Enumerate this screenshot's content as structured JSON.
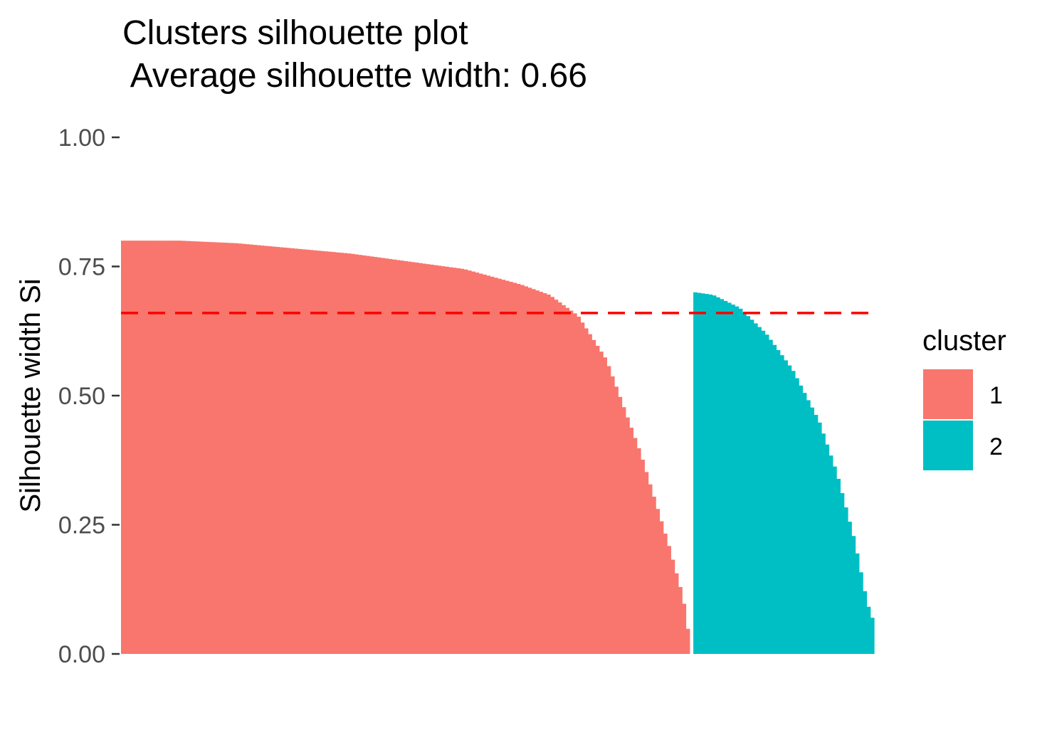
{
  "chart_data": {
    "type": "bar",
    "title": "Clusters silhouette plot",
    "subtitle": " Average silhouette width: 0.66",
    "xlabel": "",
    "ylabel": "Silhouette width Si",
    "ylim": [
      0,
      1
    ],
    "yticks": [
      "0.00",
      "0.25",
      "0.50",
      "0.75",
      "1.00"
    ],
    "average_silhouette_width": 0.66,
    "legend": {
      "title": "cluster",
      "placement": "right",
      "entries": [
        "1",
        "2"
      ]
    },
    "colors": {
      "cluster_1": "#F8766D",
      "cluster_2": "#00BFC4",
      "average_line": "#FF0000"
    },
    "grid": false,
    "series": [
      {
        "name": "1",
        "count": 152,
        "profile": [
          [
            0,
            0.8
          ],
          [
            0.1,
            0.8
          ],
          [
            0.2,
            0.795
          ],
          [
            0.3,
            0.785
          ],
          [
            0.4,
            0.775
          ],
          [
            0.5,
            0.76
          ],
          [
            0.6,
            0.745
          ],
          [
            0.7,
            0.715
          ],
          [
            0.75,
            0.695
          ],
          [
            0.8,
            0.655
          ],
          [
            0.85,
            0.57
          ],
          [
            0.88,
            0.48
          ],
          [
            0.91,
            0.39
          ],
          [
            0.935,
            0.3
          ],
          [
            0.96,
            0.21
          ],
          [
            0.985,
            0.11
          ],
          [
            1.0,
            0.0
          ]
        ]
      },
      {
        "name": "2",
        "count": 48,
        "profile": [
          [
            0,
            0.7
          ],
          [
            0.1,
            0.695
          ],
          [
            0.25,
            0.67
          ],
          [
            0.4,
            0.62
          ],
          [
            0.55,
            0.55
          ],
          [
            0.7,
            0.45
          ],
          [
            0.8,
            0.35
          ],
          [
            0.9,
            0.22
          ],
          [
            0.97,
            0.1
          ],
          [
            1.0,
            0.07
          ]
        ]
      }
    ]
  }
}
